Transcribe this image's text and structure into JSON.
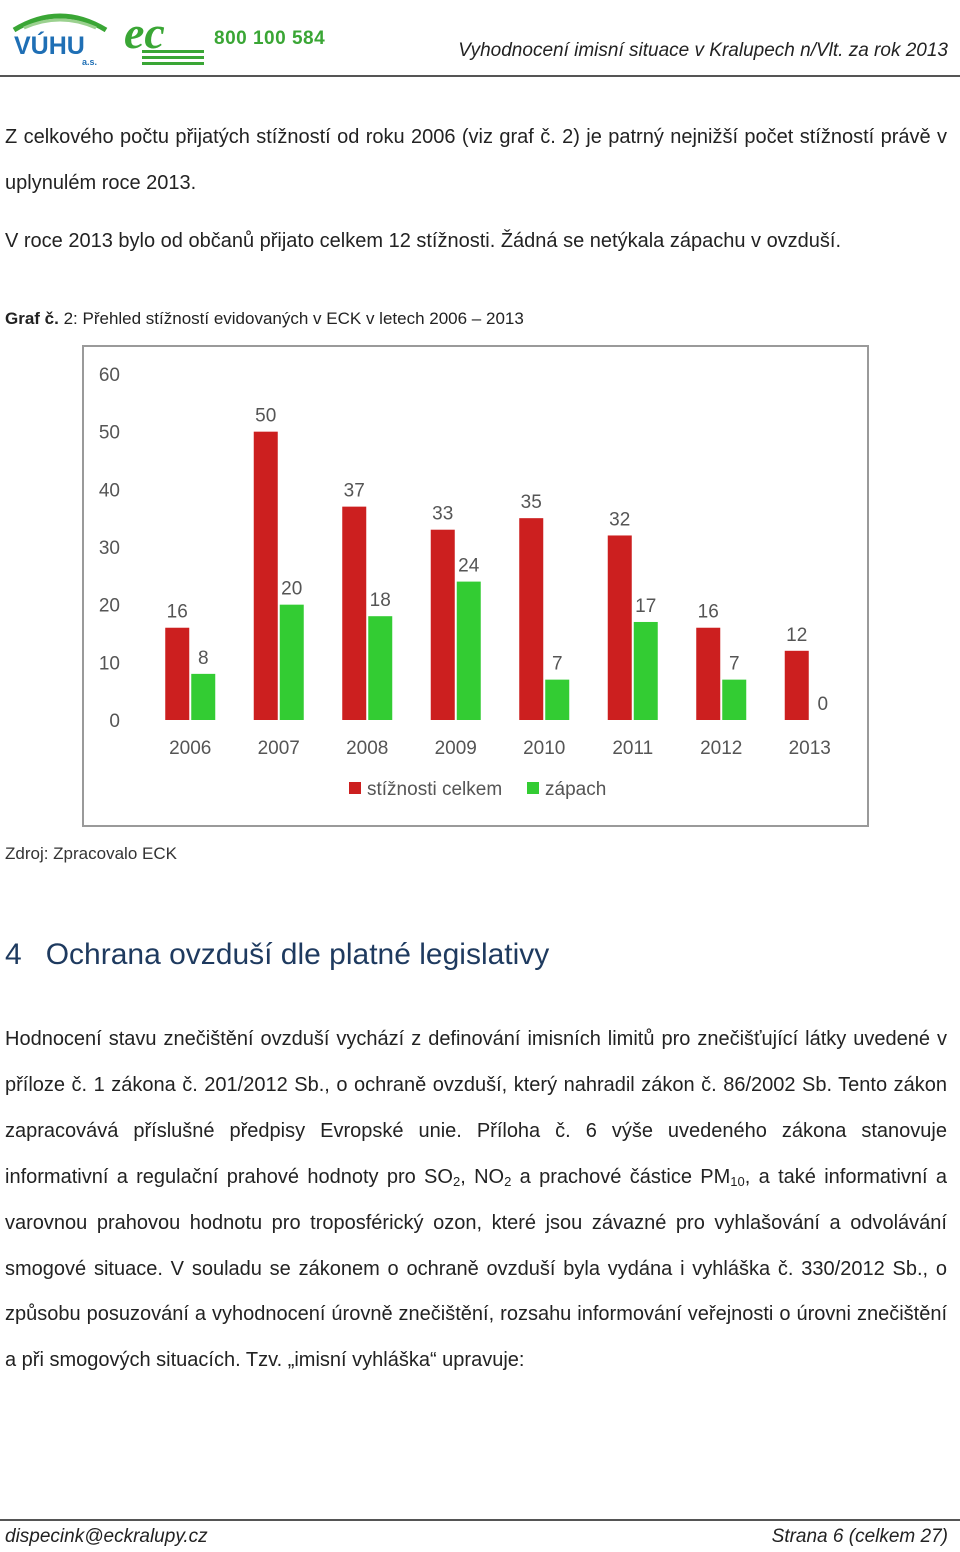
{
  "header": {
    "logo_vuhu_text": "VÚHU",
    "logo_vuhu_sub": "a.s.",
    "logo_ec_text": "ec",
    "phone": "800 100 584",
    "title": "Vyhodnocení imisní situace v Kralupech n/Vlt. za rok 2013",
    "colors": {
      "green": "#3aa635",
      "blue": "#1f6fb5"
    }
  },
  "intro": {
    "p1": "Z celkového počtu přijatých stížností od roku 2006 (viz graf č. 2) je patrný nejnižší počet stížností právě v uplynulém roce 2013.",
    "p2": "V roce 2013 bylo od občanů přijato celkem 12 stížnosti. Žádná se netýkala zápachu v ovzduší."
  },
  "figure": {
    "caption_label": "Graf č.",
    "caption_text": " 2: Přehled stížností evidovaných v ECK v letech 2006 – 2013",
    "source": "Zdroj: Zpracovalo ECK"
  },
  "chart_data": {
    "type": "bar",
    "categories": [
      "2006",
      "2007",
      "2008",
      "2009",
      "2010",
      "2011",
      "2012",
      "2013"
    ],
    "series": [
      {
        "name": "stížnosti celkem",
        "color": "#cc1f1f",
        "values": [
          16,
          50,
          37,
          33,
          35,
          32,
          16,
          12
        ]
      },
      {
        "name": "zápach",
        "color": "#33cc33",
        "values": [
          8,
          20,
          18,
          24,
          7,
          17,
          7,
          0
        ]
      }
    ],
    "yticks": [
      "0",
      "10",
      "20",
      "30",
      "40",
      "50",
      "60"
    ],
    "ylim": [
      0,
      60
    ],
    "grid": false,
    "legend": "bottom",
    "data_labels": true
  },
  "section": {
    "number": "4",
    "title": "Ochrana ovzduší dle platné legislativy"
  },
  "body": {
    "t1": "Hodnocení stavu znečištění ovzduší vychází z definování imisních limitů pro znečišťující látky uvedené v příloze č. 1 zákona č. 201/2012 Sb., o ochraně ovzduší, který nahradil zákon č. 86/2002 Sb. Tento zákon zapracovává příslušné předpisy Evropské unie. Příloha č. 6 výše uvedeného zákona stanovuje informativní a regulační prahové hodnoty pro SO",
    "sub1": "2",
    "t2": ", NO",
    "sub2": "2",
    "t3": " a prachové částice PM",
    "sub3": "10",
    "t4": ", a také informativní a varovnou prahovou hodnotu pro troposférický ozon, které jsou závazné pro vyhlašování a odvolávání smogové situace. V souladu se zákonem o ochraně ovzduší byla vydána i vyhláška č. 330/2012 Sb., o způsobu posuzování a vyhodnocení úrovně znečištění, rozsahu informování veřejnosti o úrovni znečištění a při smogových situacích. Tzv. „imisní vyhláška“ upravuje:"
  },
  "footer": {
    "email": "dispecink@eckralupy.cz",
    "page": "Strana 6 (celkem 27)"
  }
}
